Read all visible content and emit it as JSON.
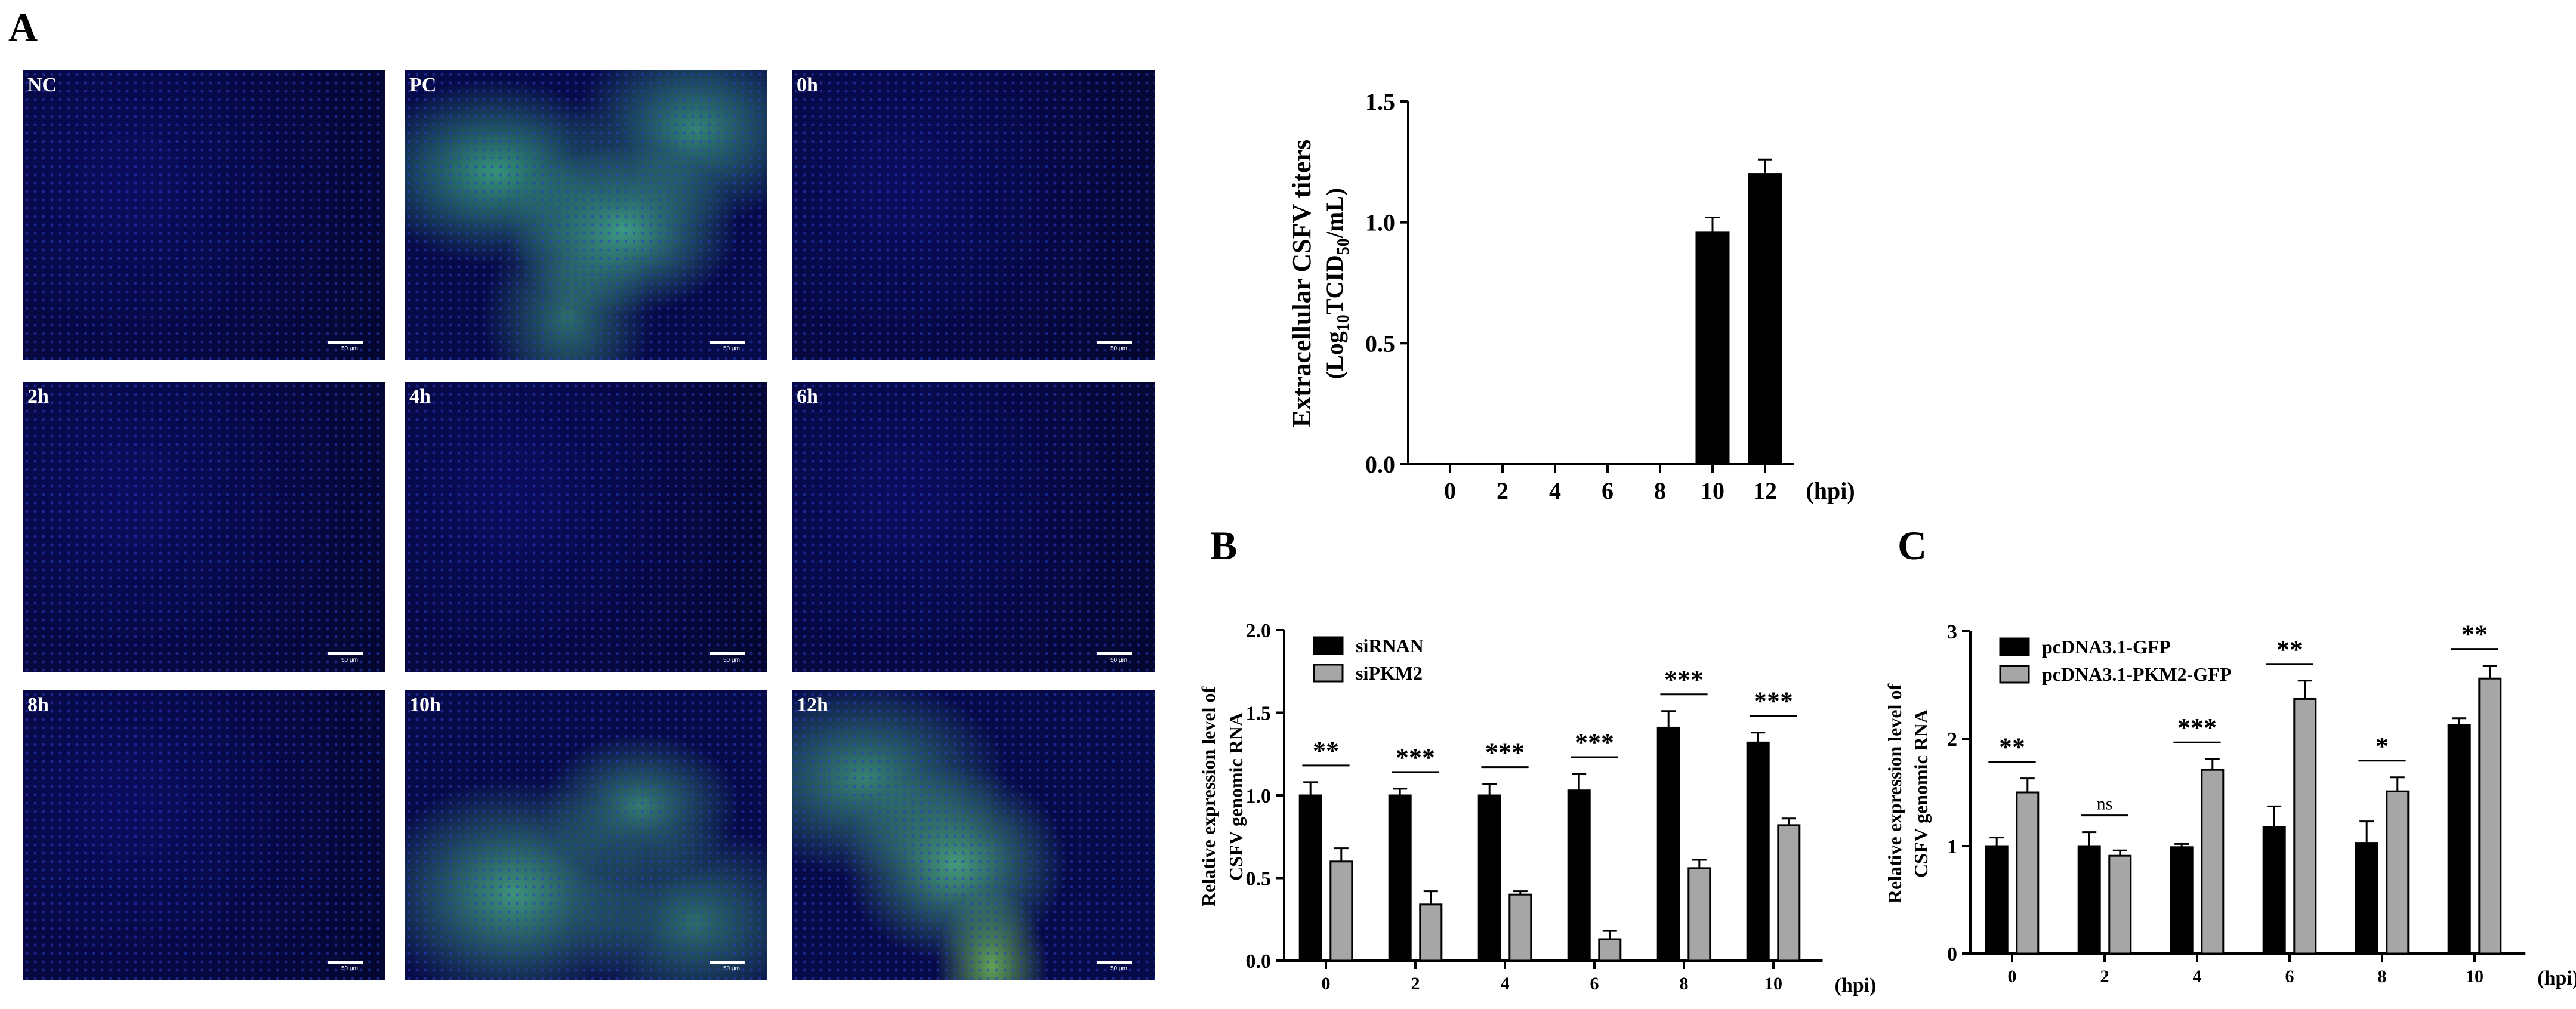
{
  "panel_letters": {
    "a": "A",
    "b": "B",
    "c": "C"
  },
  "micrographs": [
    {
      "label": "NC",
      "fluorescence": "none"
    },
    {
      "label": "PC",
      "fluorescence": "strong"
    },
    {
      "label": "0h",
      "fluorescence": "none"
    },
    {
      "label": "2h",
      "fluorescence": "none"
    },
    {
      "label": "4h",
      "fluorescence": "none"
    },
    {
      "label": "6h",
      "fluorescence": "none"
    },
    {
      "label": "8h",
      "fluorescence": "none"
    },
    {
      "label": "10h",
      "fluorescence": "strong"
    },
    {
      "label": "12h",
      "fluorescence": "strong"
    }
  ],
  "scale_bar_text": "50 μm",
  "colors": {
    "black_bar": "#000000",
    "gray_bar": "#a6a6a6",
    "nucleus_blue": "#0a0d5e",
    "virus_green": "#46aa82"
  },
  "chart_data": [
    {
      "id": "titer",
      "type": "bar",
      "categories": [
        "0",
        "2",
        "4",
        "6",
        "8",
        "10",
        "12"
      ],
      "series": [
        {
          "values": [
            0,
            0,
            0,
            0,
            0,
            0.96,
            1.2
          ],
          "errors": [
            0,
            0,
            0,
            0,
            0,
            0.06,
            0.06
          ]
        }
      ],
      "ylabel_line1": "Extracellular CSFV titers",
      "ylabel_line2_parts": [
        "(Log",
        "10",
        "TCID",
        "50",
        "/mL)"
      ],
      "xunit": "(hpi)",
      "ylim": [
        0,
        1.5
      ],
      "yticks": [
        "0.0",
        "0.5",
        "1.0",
        "1.5"
      ],
      "grid": false
    },
    {
      "id": "B",
      "type": "bar",
      "categories": [
        "0",
        "2",
        "4",
        "6",
        "8",
        "10"
      ],
      "series": [
        {
          "name": "siRNAN",
          "values": [
            1.0,
            1.0,
            1.0,
            1.03,
            1.41,
            1.32
          ],
          "errors": [
            0.08,
            0.04,
            0.07,
            0.1,
            0.1,
            0.06
          ]
        },
        {
          "name": "siPKM2",
          "values": [
            0.6,
            0.34,
            0.4,
            0.13,
            0.56,
            0.82
          ],
          "errors": [
            0.08,
            0.08,
            0.02,
            0.05,
            0.05,
            0.04
          ]
        }
      ],
      "significance": [
        "**",
        "***",
        "***",
        "***",
        "***",
        "***"
      ],
      "ylabel_line1": "Relative expression level of",
      "ylabel_line2": "CSFV genomic RNA",
      "xunit": "(hpi)",
      "ylim": [
        0,
        2.0
      ],
      "yticks": [
        "0.0",
        "0.5",
        "1.0",
        "1.5",
        "2.0"
      ],
      "legend_position": "top-left",
      "grid": false
    },
    {
      "id": "C",
      "type": "bar",
      "categories": [
        "0",
        "2",
        "4",
        "6",
        "8",
        "10"
      ],
      "series": [
        {
          "name": "pcDNA3.1-GFP",
          "values": [
            1.0,
            1.0,
            0.99,
            1.18,
            1.03,
            2.13
          ],
          "errors": [
            0.08,
            0.13,
            0.03,
            0.19,
            0.2,
            0.06
          ]
        },
        {
          "name": "pcDNA3.1-PKM2-GFP",
          "values": [
            1.5,
            0.91,
            1.71,
            2.37,
            1.51,
            2.56
          ],
          "errors": [
            0.13,
            0.05,
            0.1,
            0.17,
            0.13,
            0.12
          ]
        }
      ],
      "significance": [
        "**",
        "ns",
        "***",
        "**",
        "*",
        "**"
      ],
      "ylabel_line1": "Relative expression level of",
      "ylabel_line2": "CSFV genomic RNA",
      "xunit": "(hpi)",
      "ylim": [
        0,
        3
      ],
      "yticks": [
        "0",
        "1",
        "2",
        "3"
      ],
      "legend_position": "top-left",
      "grid": false
    }
  ]
}
